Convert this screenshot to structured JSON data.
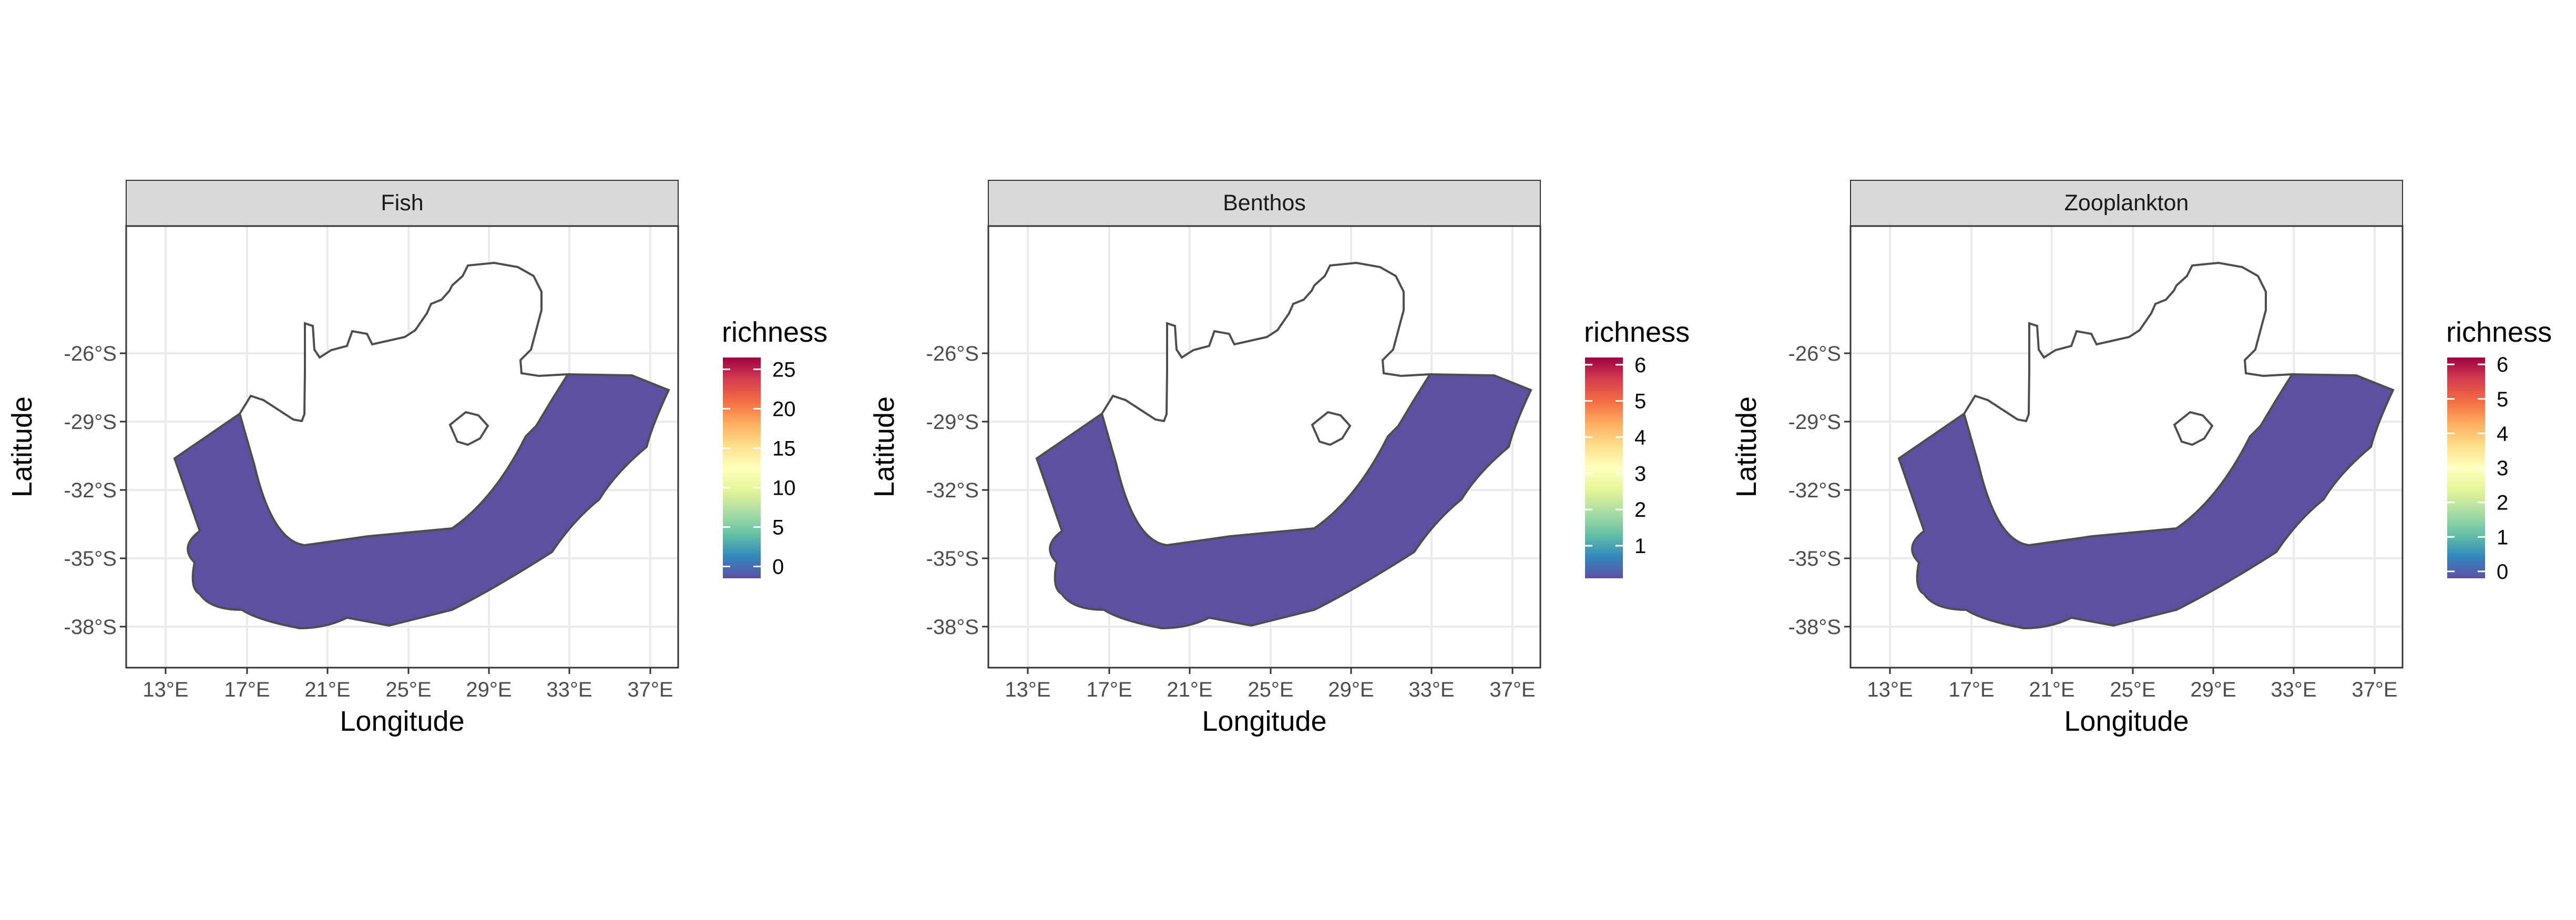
{
  "colors": {
    "ocean_low": "#5e4fa2",
    "strip_bg": "#d9d9d9",
    "grid": "#ebebeb",
    "outline": "#4d4d4d",
    "spectral": [
      "#5e4fa2",
      "#3288bd",
      "#66c2a5",
      "#abdda4",
      "#e6f598",
      "#ffffbf",
      "#fee08b",
      "#fdae61",
      "#f46d43",
      "#d53e4f",
      "#9e0142"
    ]
  },
  "axes": {
    "x_title": "Longitude",
    "y_title": "Latitude",
    "x_ticks": [
      "13°E",
      "17°E",
      "21°E",
      "25°E",
      "29°E",
      "33°E",
      "37°E"
    ],
    "y_ticks": [
      "-26°S",
      "-29°S",
      "-32°S",
      "-35°S",
      "-38°S"
    ]
  },
  "panels": [
    {
      "title": "Fish",
      "legend": {
        "title": "richness",
        "min": -1.5,
        "max": 26.5,
        "ticks": [
          "25",
          "20",
          "15",
          "10",
          "5",
          "0"
        ],
        "tick_values": [
          25,
          20,
          15,
          10,
          5,
          0
        ]
      }
    },
    {
      "title": "Benthos",
      "legend": {
        "title": "richness",
        "min": 0.1,
        "max": 6.2,
        "ticks": [
          "6",
          "5",
          "4",
          "3",
          "2",
          "1"
        ],
        "tick_values": [
          6,
          5,
          4,
          3,
          2,
          1
        ]
      }
    },
    {
      "title": "Zooplankton",
      "legend": {
        "title": "richness",
        "min": -0.2,
        "max": 6.2,
        "ticks": [
          "6",
          "5",
          "4",
          "3",
          "2",
          "1",
          "0"
        ],
        "tick_values": [
          6,
          5,
          4,
          3,
          2,
          1,
          0
        ]
      }
    }
  ]
}
